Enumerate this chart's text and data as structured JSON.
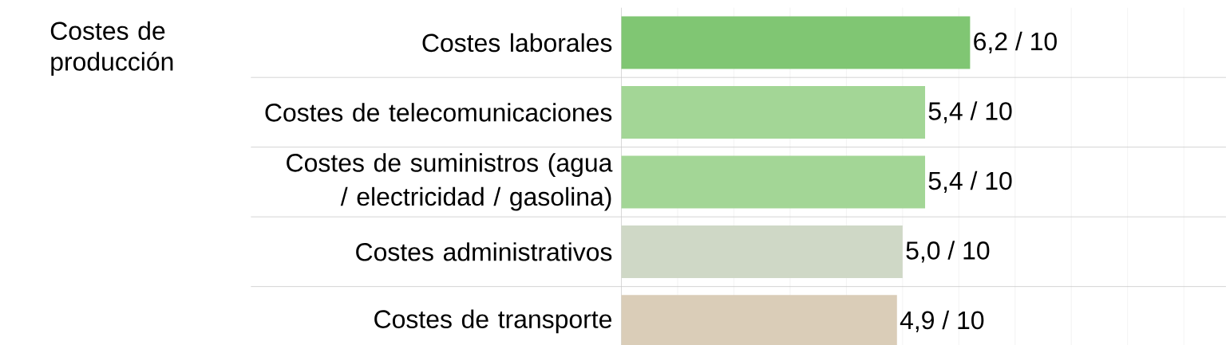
{
  "chart_data": {
    "type": "bar",
    "orientation": "horizontal",
    "ylabel": "Costes de producción",
    "categories": [
      "Costes laborales",
      "Costes de telecomunicaciones",
      "Costes de suministros (agua / electricidad / gasolina)",
      "Costes administrativos",
      "Costes de transporte"
    ],
    "values": [
      6.2,
      5.4,
      5.4,
      5.0,
      4.9
    ],
    "value_labels": [
      "6,2 / 10",
      "5,4 / 10",
      "5,4 / 10",
      "5,0 / 10",
      "4,9 / 10"
    ],
    "colors": [
      "#80c673",
      "#a3d696",
      "#a3d696",
      "#cfd8c6",
      "#dacdb8"
    ],
    "xlim": [
      0,
      10.75
    ],
    "xticks": [
      {
        "value": 1,
        "label": null
      },
      {
        "value": 2,
        "label": null
      },
      {
        "value": 3,
        "label": null
      },
      {
        "value": 4,
        "label": null
      },
      {
        "value": 5,
        "label": null
      },
      {
        "value": 6,
        "label": null
      },
      {
        "value": 7,
        "label": null
      },
      {
        "value": 8,
        "label": null
      },
      {
        "value": 9,
        "label": null
      },
      {
        "value": 10,
        "label": null
      }
    ],
    "grid": true
  }
}
